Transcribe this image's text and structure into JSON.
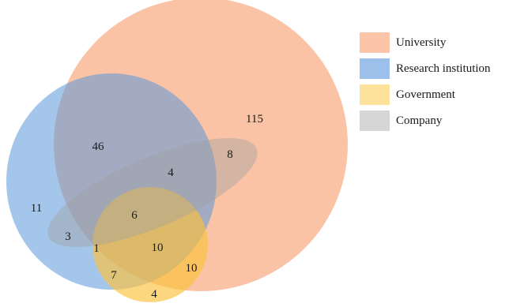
{
  "sets": [
    {
      "name": "University",
      "color": "#f7a77c"
    },
    {
      "name": "Research institution",
      "color": "#6fa3dd"
    },
    {
      "name": "Government",
      "color": "#fcc93e"
    },
    {
      "name": "Company",
      "color": "#b8b8b8"
    }
  ],
  "regions": [
    {
      "id": "university-only",
      "value": "115"
    },
    {
      "id": "university-research",
      "value": "46"
    },
    {
      "id": "research-only",
      "value": "11"
    },
    {
      "id": "university-company",
      "value": "8"
    },
    {
      "id": "university-research-company",
      "value": "4"
    },
    {
      "id": "all-four",
      "value": "6"
    },
    {
      "id": "research-company",
      "value": "3"
    },
    {
      "id": "research-government-company",
      "value": "1"
    },
    {
      "id": "university-government",
      "value": "10"
    },
    {
      "id": "university-government-outer",
      "value": "10"
    },
    {
      "id": "research-government",
      "value": "7"
    },
    {
      "id": "government-only",
      "value": "4"
    }
  ]
}
